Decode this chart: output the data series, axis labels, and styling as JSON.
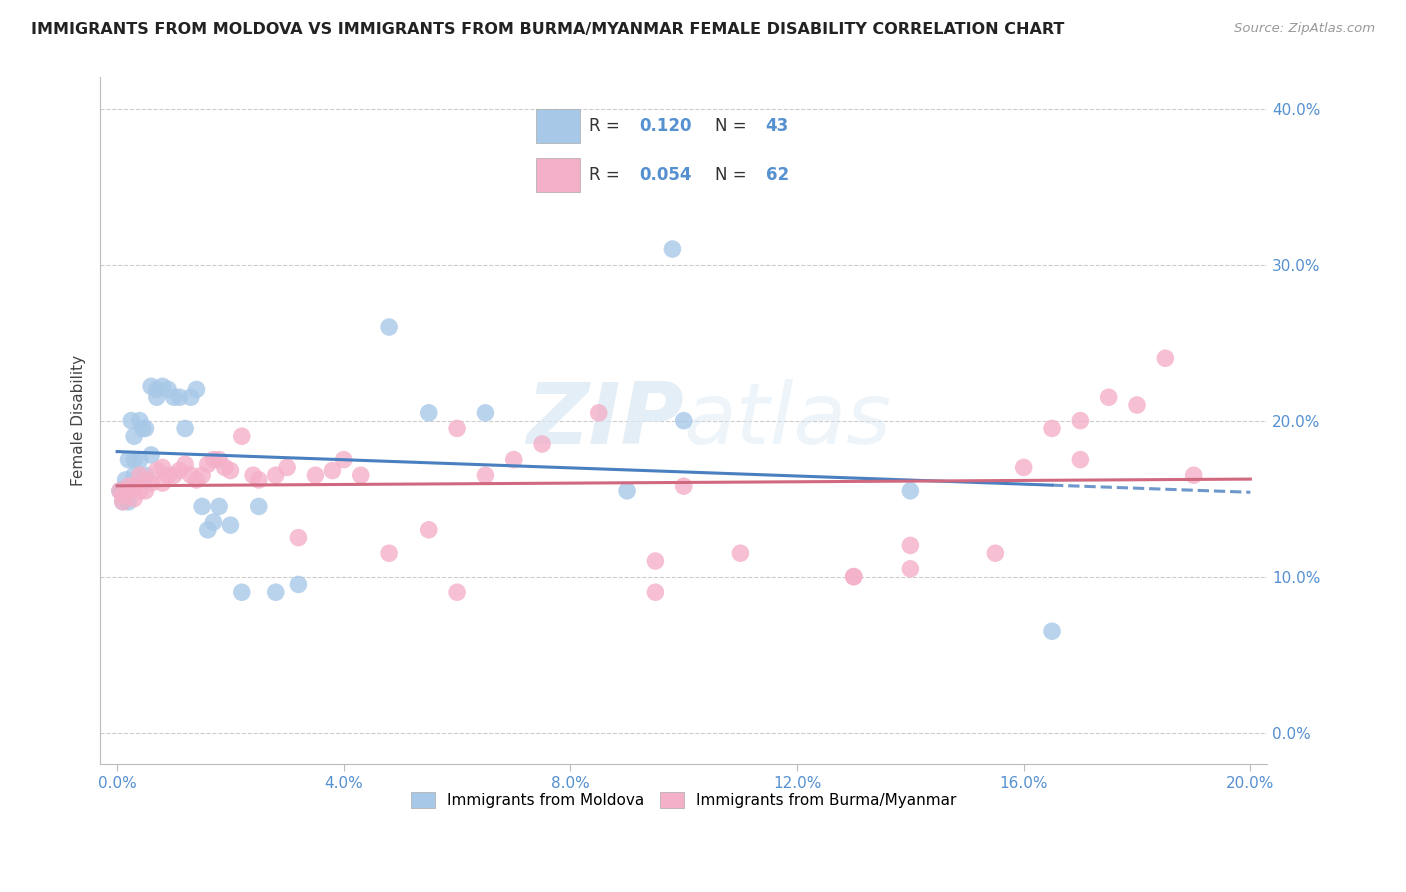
{
  "title": "IMMIGRANTS FROM MOLDOVA VS IMMIGRANTS FROM BURMA/MYANMAR FEMALE DISABILITY CORRELATION CHART",
  "source": "Source: ZipAtlas.com",
  "ylabel": "Female Disability",
  "legend_label1": "Immigrants from Moldova",
  "legend_label2": "Immigrants from Burma/Myanmar",
  "R1": 0.12,
  "N1": 43,
  "R2": 0.054,
  "N2": 62,
  "xlim": [
    -0.003,
    0.203
  ],
  "ylim": [
    -0.02,
    0.42
  ],
  "xticks": [
    0.0,
    0.04,
    0.08,
    0.12,
    0.16,
    0.2
  ],
  "yticks": [
    0.0,
    0.1,
    0.2,
    0.3,
    0.4
  ],
  "color_moldova": "#a8c8e8",
  "color_burma": "#f4b0c8",
  "trend_color_moldova": "#4a7fc0",
  "trend_color_burma": "#d06880",
  "tick_color": "#5590d0",
  "watermark_color": "#d8e8f4",
  "moldova_x": [
    0.0005,
    0.001,
    0.001,
    0.0015,
    0.002,
    0.002,
    0.0025,
    0.003,
    0.003,
    0.003,
    0.004,
    0.004,
    0.0045,
    0.005,
    0.005,
    0.006,
    0.006,
    0.007,
    0.007,
    0.008,
    0.009,
    0.01,
    0.011,
    0.012,
    0.013,
    0.014,
    0.015,
    0.016,
    0.017,
    0.018,
    0.02,
    0.022,
    0.025,
    0.028,
    0.032,
    0.048,
    0.055,
    0.065,
    0.09,
    0.098,
    0.1,
    0.14,
    0.165
  ],
  "moldova_y": [
    0.155,
    0.155,
    0.148,
    0.162,
    0.175,
    0.148,
    0.2,
    0.19,
    0.175,
    0.165,
    0.2,
    0.175,
    0.195,
    0.195,
    0.165,
    0.222,
    0.178,
    0.22,
    0.215,
    0.222,
    0.22,
    0.215,
    0.215,
    0.195,
    0.215,
    0.22,
    0.145,
    0.13,
    0.135,
    0.145,
    0.133,
    0.09,
    0.145,
    0.09,
    0.095,
    0.26,
    0.205,
    0.205,
    0.155,
    0.31,
    0.2,
    0.155,
    0.065
  ],
  "burma_x": [
    0.0005,
    0.001,
    0.001,
    0.002,
    0.002,
    0.003,
    0.003,
    0.004,
    0.004,
    0.005,
    0.005,
    0.006,
    0.007,
    0.008,
    0.008,
    0.009,
    0.01,
    0.011,
    0.012,
    0.013,
    0.014,
    0.015,
    0.016,
    0.017,
    0.018,
    0.019,
    0.02,
    0.022,
    0.024,
    0.025,
    0.028,
    0.03,
    0.032,
    0.035,
    0.038,
    0.04,
    0.043,
    0.048,
    0.055,
    0.06,
    0.065,
    0.07,
    0.075,
    0.085,
    0.095,
    0.1,
    0.11,
    0.13,
    0.14,
    0.155,
    0.16,
    0.165,
    0.17,
    0.175,
    0.18,
    0.185,
    0.19,
    0.13,
    0.14,
    0.095,
    0.06,
    0.17
  ],
  "burma_y": [
    0.155,
    0.152,
    0.148,
    0.158,
    0.155,
    0.15,
    0.158,
    0.165,
    0.155,
    0.162,
    0.155,
    0.16,
    0.168,
    0.17,
    0.16,
    0.165,
    0.165,
    0.168,
    0.172,
    0.165,
    0.162,
    0.165,
    0.172,
    0.175,
    0.175,
    0.17,
    0.168,
    0.19,
    0.165,
    0.162,
    0.165,
    0.17,
    0.125,
    0.165,
    0.168,
    0.175,
    0.165,
    0.115,
    0.13,
    0.195,
    0.165,
    0.175,
    0.185,
    0.205,
    0.09,
    0.158,
    0.115,
    0.1,
    0.12,
    0.115,
    0.17,
    0.195,
    0.175,
    0.215,
    0.21,
    0.24,
    0.165,
    0.1,
    0.105,
    0.11,
    0.09,
    0.2
  ]
}
